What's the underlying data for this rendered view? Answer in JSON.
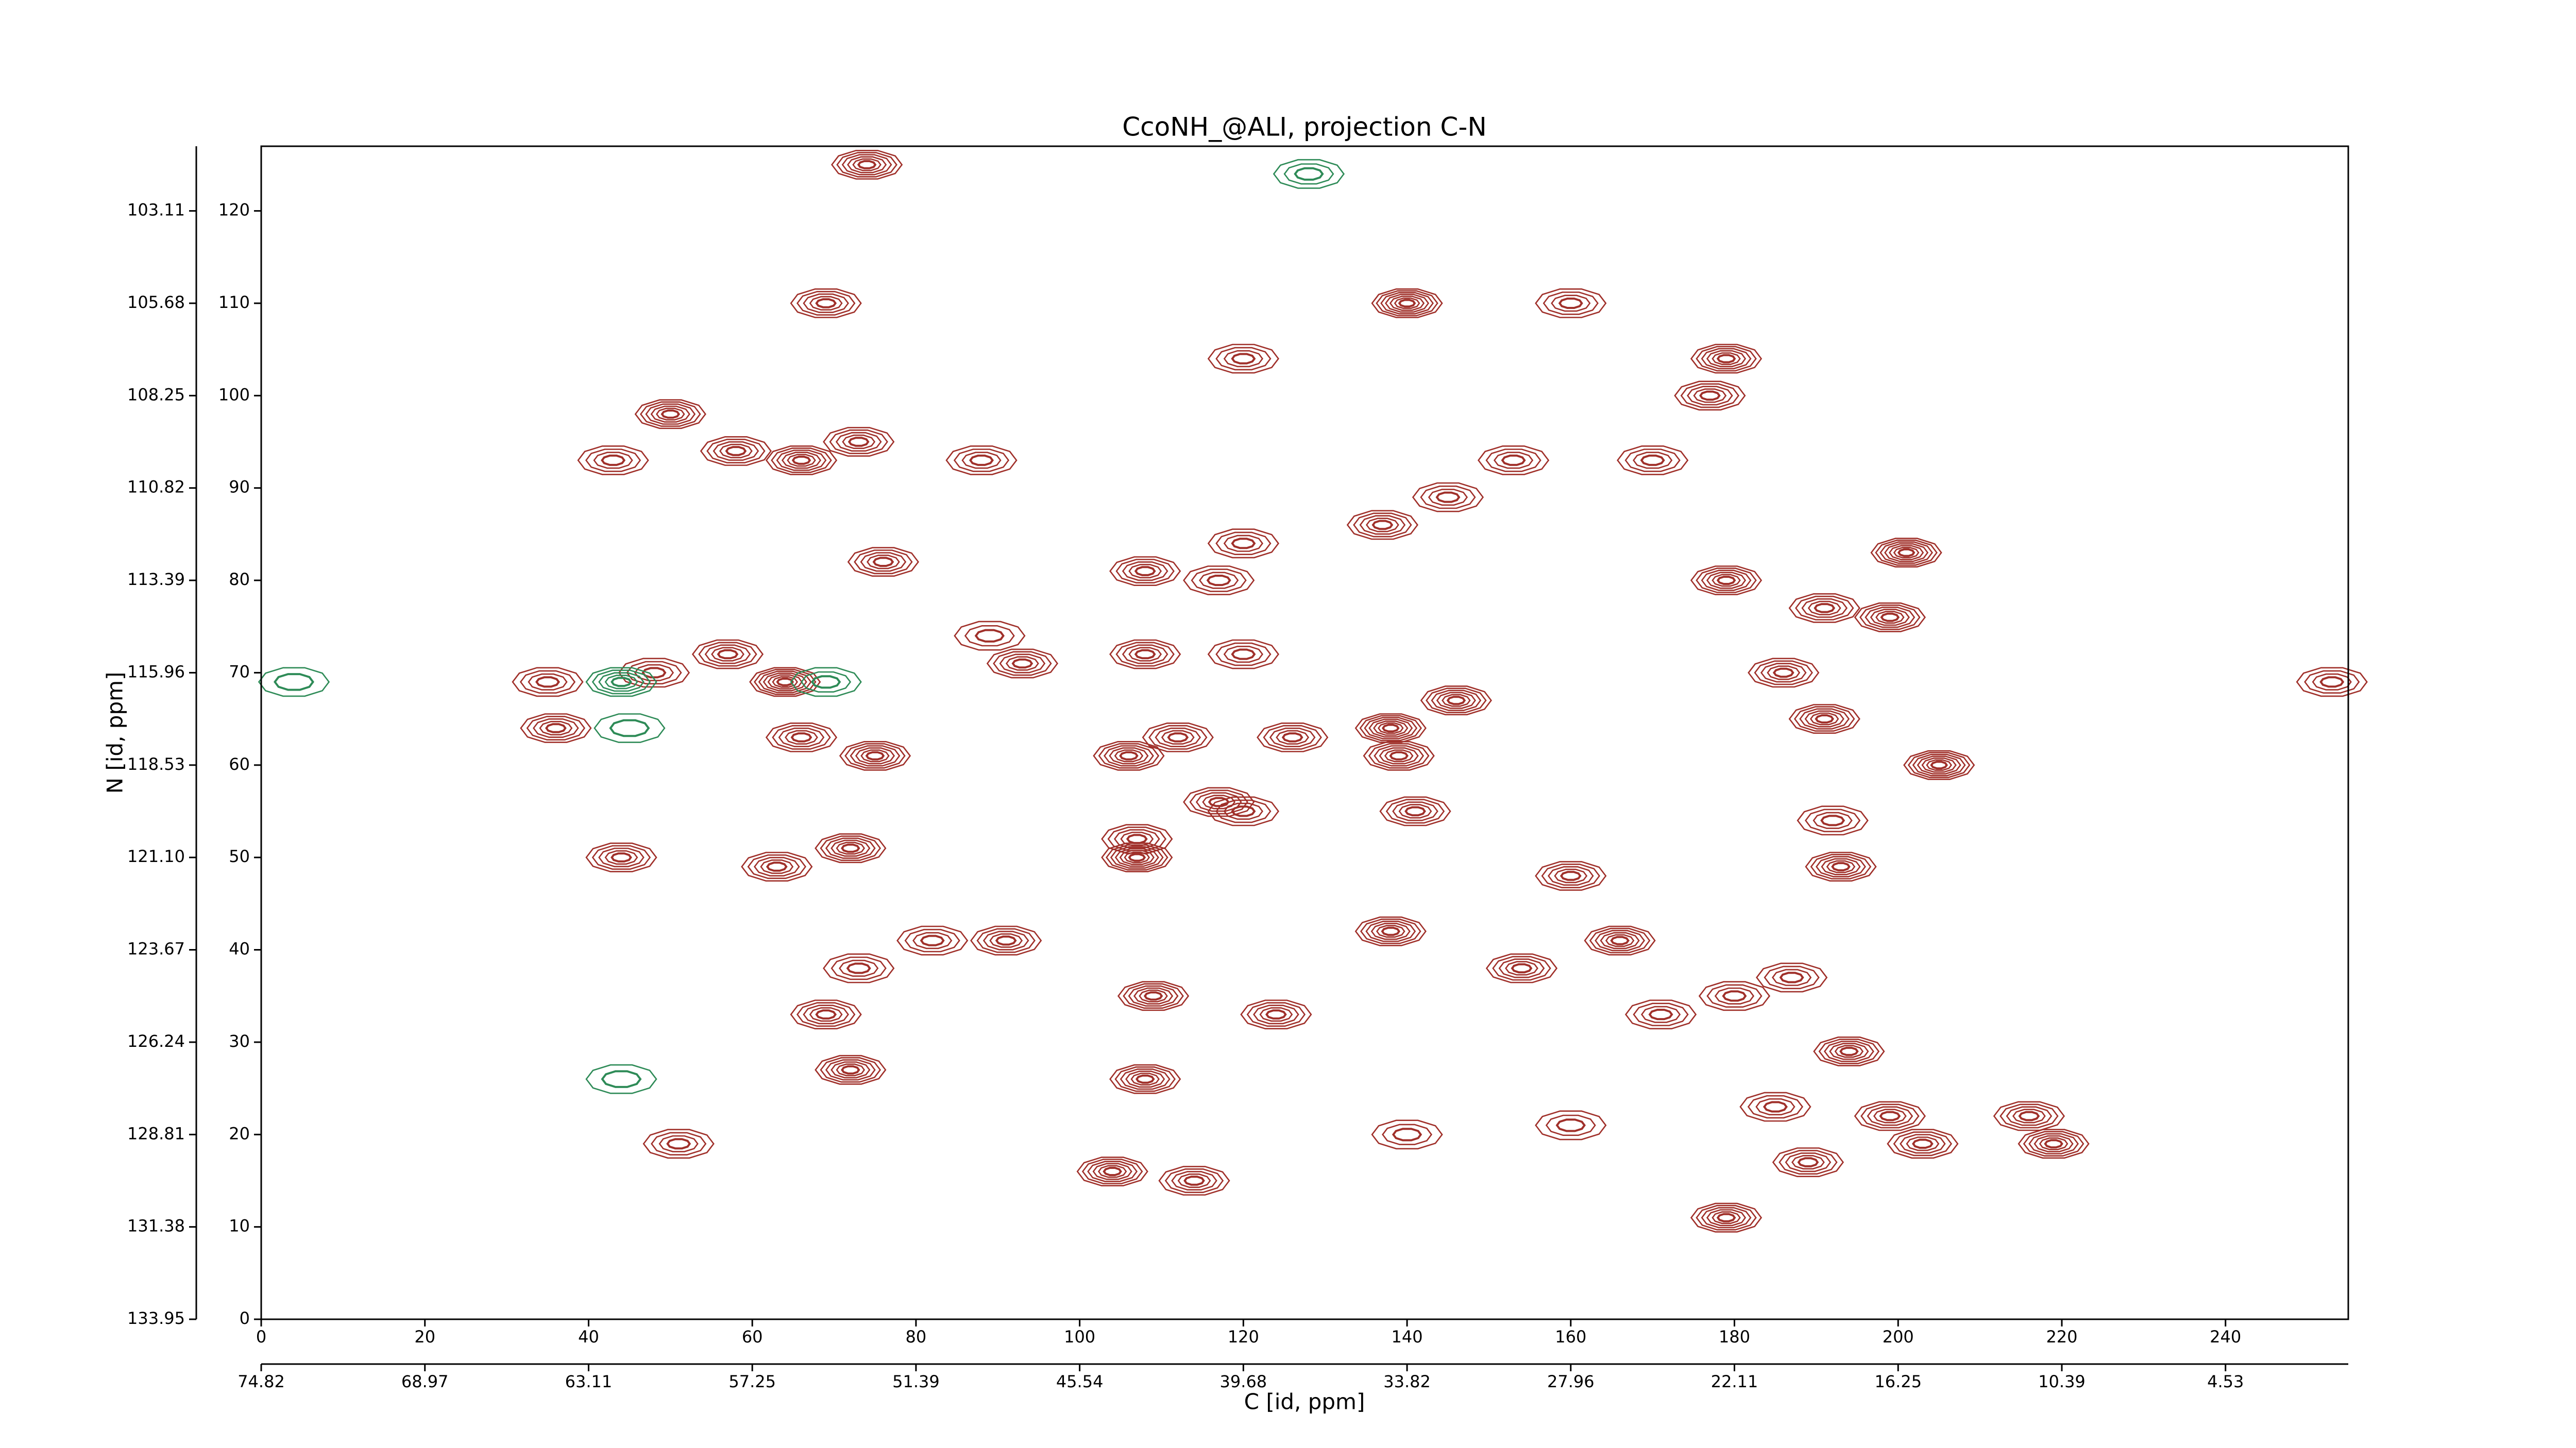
{
  "chart_data": {
    "type": "contour",
    "title": "CcoNH_@ALI, projection C-N",
    "xlabel": "C [id, ppm]",
    "ylabel": "N [id, ppm]",
    "xlim": [
      0,
      255
    ],
    "ylim": [
      0,
      127
    ],
    "xticks": [
      0,
      20,
      40,
      60,
      80,
      100,
      120,
      140,
      160,
      180,
      200,
      220,
      240
    ],
    "yticks": [
      0,
      10,
      20,
      30,
      40,
      50,
      60,
      70,
      80,
      90,
      100,
      110,
      120
    ],
    "x2ticks": [
      {
        "value": 0,
        "label": "74.82"
      },
      {
        "value": 20,
        "label": "68.97"
      },
      {
        "value": 40,
        "label": "63.11"
      },
      {
        "value": 60,
        "label": "57.25"
      },
      {
        "value": 80,
        "label": "51.39"
      },
      {
        "value": 100,
        "label": "45.54"
      },
      {
        "value": 120,
        "label": "39.68"
      },
      {
        "value": 140,
        "label": "33.82"
      },
      {
        "value": 160,
        "label": "27.96"
      },
      {
        "value": 180,
        "label": "22.11"
      },
      {
        "value": 200,
        "label": "16.25"
      },
      {
        "value": 220,
        "label": "10.39"
      },
      {
        "value": 240,
        "label": "4.53"
      }
    ],
    "y2ticks": [
      {
        "value": 0,
        "label": "133.95"
      },
      {
        "value": 10,
        "label": "131.38"
      },
      {
        "value": 20,
        "label": "128.81"
      },
      {
        "value": 30,
        "label": "126.24"
      },
      {
        "value": 40,
        "label": "123.67"
      },
      {
        "value": 50,
        "label": "121.10"
      },
      {
        "value": 60,
        "label": "118.53"
      },
      {
        "value": 70,
        "label": "115.96"
      },
      {
        "value": 80,
        "label": "113.39"
      },
      {
        "value": 90,
        "label": "110.82"
      },
      {
        "value": 100,
        "label": "108.25"
      },
      {
        "value": 110,
        "label": "105.68"
      },
      {
        "value": 120,
        "label": "103.11"
      }
    ],
    "positive_color": "#a0302a",
    "negative_color": "#2e8b57",
    "peaks": [
      [
        74,
        125,
        6
      ],
      [
        140,
        110,
        7
      ],
      [
        160,
        110,
        4
      ],
      [
        179,
        104,
        6
      ],
      [
        177,
        100,
        5
      ],
      [
        120,
        104,
        4
      ],
      [
        69,
        110,
        5
      ],
      [
        50,
        98,
        6
      ],
      [
        43,
        93,
        4
      ],
      [
        58,
        94,
        5
      ],
      [
        66,
        93,
        6
      ],
      [
        73,
        95,
        5
      ],
      [
        88,
        93,
        4
      ],
      [
        153,
        93,
        4
      ],
      [
        170,
        93,
        4
      ],
      [
        137,
        86,
        5
      ],
      [
        145,
        89,
        4
      ],
      [
        120,
        84,
        4
      ],
      [
        108,
        81,
        5
      ],
      [
        76,
        82,
        5
      ],
      [
        201,
        83,
        7
      ],
      [
        117,
        80,
        4
      ],
      [
        179,
        80,
        6
      ],
      [
        191,
        77,
        5
      ],
      [
        199,
        76,
        6
      ],
      [
        108,
        72,
        5
      ],
      [
        120,
        72,
        4
      ],
      [
        89,
        74,
        3
      ],
      [
        93,
        71,
        5
      ],
      [
        64,
        69,
        7
      ],
      [
        35,
        69,
        4
      ],
      [
        48,
        70,
        4
      ],
      [
        57,
        72,
        5
      ],
      [
        186,
        70,
        5
      ],
      [
        191,
        65,
        6
      ],
      [
        146,
        67,
        6
      ],
      [
        138,
        64,
        7
      ],
      [
        139,
        61,
        6
      ],
      [
        126,
        63,
        5
      ],
      [
        112,
        63,
        5
      ],
      [
        106,
        61,
        6
      ],
      [
        205,
        60,
        7
      ],
      [
        36,
        64,
        5
      ],
      [
        75,
        61,
        6
      ],
      [
        66,
        63,
        5
      ],
      [
        253,
        69,
        4
      ],
      [
        117,
        56,
        5
      ],
      [
        120,
        55,
        4
      ],
      [
        107,
        50,
        7
      ],
      [
        107,
        52,
        5
      ],
      [
        44,
        50,
        5
      ],
      [
        63,
        49,
        5
      ],
      [
        72,
        51,
        6
      ],
      [
        141,
        55,
        5
      ],
      [
        160,
        48,
        5
      ],
      [
        193,
        49,
        6
      ],
      [
        192,
        54,
        4
      ],
      [
        138,
        42,
        6
      ],
      [
        166,
        41,
        6
      ],
      [
        91,
        41,
        5
      ],
      [
        82,
        41,
        4
      ],
      [
        73,
        38,
        4
      ],
      [
        69,
        33,
        5
      ],
      [
        109,
        35,
        6
      ],
      [
        124,
        33,
        5
      ],
      [
        154,
        38,
        5
      ],
      [
        180,
        35,
        4
      ],
      [
        187,
        37,
        4
      ],
      [
        171,
        33,
        4
      ],
      [
        72,
        27,
        6
      ],
      [
        108,
        26,
        6
      ],
      [
        194,
        29,
        6
      ],
      [
        216,
        22,
        5
      ],
      [
        219,
        19,
        6
      ],
      [
        199,
        22,
        5
      ],
      [
        203,
        19,
        5
      ],
      [
        179,
        11,
        6
      ],
      [
        104,
        16,
        6
      ],
      [
        114,
        15,
        5
      ],
      [
        189,
        17,
        5
      ],
      [
        185,
        23,
        4
      ],
      [
        51,
        19,
        4
      ],
      [
        160,
        21,
        3
      ],
      [
        140,
        20,
        3
      ]
    ],
    "negative_peaks": [
      [
        44,
        69,
        5
      ],
      [
        69,
        69,
        3
      ],
      [
        128,
        124,
        3
      ],
      [
        44,
        26,
        2
      ],
      [
        4,
        69,
        2
      ],
      [
        45,
        64,
        2
      ]
    ]
  }
}
